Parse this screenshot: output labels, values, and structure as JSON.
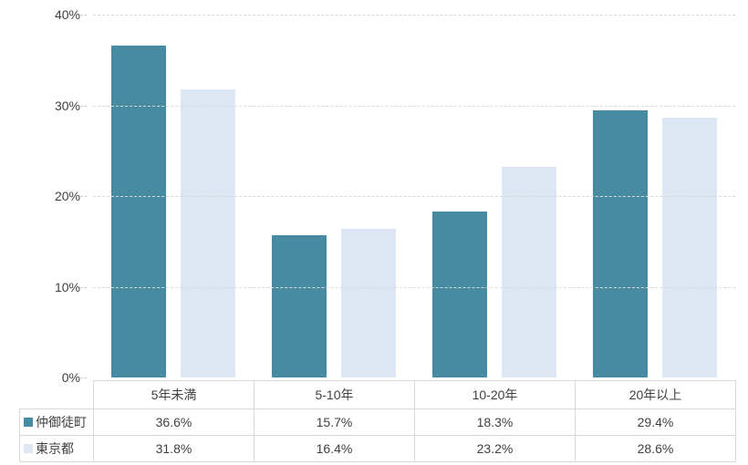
{
  "chart_data": {
    "type": "bar",
    "title": "",
    "xlabel": "",
    "ylabel": "",
    "categories": [
      "5年未満",
      "5-10年",
      "10-20年",
      "20年以上"
    ],
    "series": [
      {
        "name": "仲御徒町",
        "color": "#478BA2",
        "values": [
          36.6,
          15.7,
          18.3,
          29.4
        ],
        "display": [
          "36.6%",
          "15.7%",
          "18.3%",
          "29.4%"
        ]
      },
      {
        "name": "東京都",
        "color": "#DCE7F3",
        "values": [
          31.8,
          16.4,
          23.2,
          28.6
        ],
        "display": [
          "31.8%",
          "16.4%",
          "23.2%",
          "28.6%"
        ]
      }
    ],
    "ylim": [
      0,
      40
    ],
    "yticks": [
      {
        "value": 0,
        "label": "0%"
      },
      {
        "value": 10,
        "label": "10%"
      },
      {
        "value": 20,
        "label": "20%"
      },
      {
        "value": 30,
        "label": "30%"
      },
      {
        "value": 40,
        "label": "40%"
      }
    ],
    "grid": "horizontal-dashed",
    "legend_position": "table-left-column"
  },
  "styles": {
    "background": "#ffffff",
    "grid_color": "#d9d9d9",
    "table_border_color": "#d9d9d9",
    "text_color": "#404040"
  }
}
